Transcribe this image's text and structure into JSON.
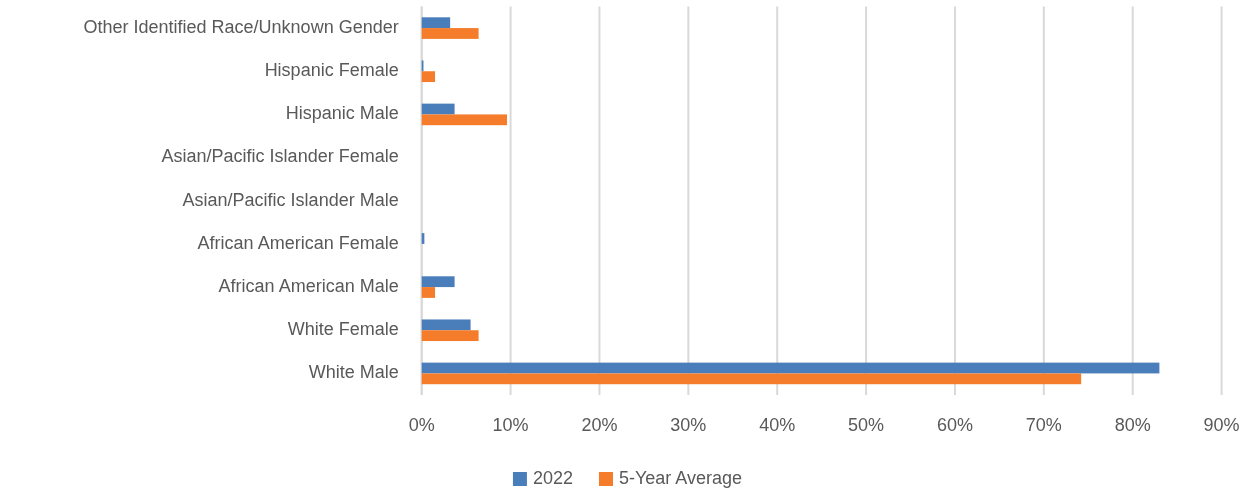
{
  "chart_data": {
    "type": "bar",
    "orientation": "horizontal",
    "categories": [
      "Other Identified Race/Unknown Gender",
      "Hispanic Female",
      "Hispanic Male",
      "Asian/Pacific Islander Female",
      "Asian/Pacific Islander Male",
      "African American Female",
      "African American Male",
      "White Female",
      "White Male"
    ],
    "series": [
      {
        "name": "2022",
        "color": "#4a7ebb",
        "values": [
          3.2,
          0.2,
          3.7,
          0,
          0,
          0.3,
          3.7,
          5.5,
          83.0
        ]
      },
      {
        "name": "5-Year Average",
        "color": "#f47c2a",
        "values": [
          6.4,
          1.5,
          9.6,
          0,
          0,
          0,
          1.5,
          6.4,
          74.2
        ]
      }
    ],
    "xlim": [
      0,
      90
    ],
    "xticks": [
      {
        "value": 0,
        "label": "0%"
      },
      {
        "value": 10,
        "label": "10%"
      },
      {
        "value": 20,
        "label": "20%"
      },
      {
        "value": 30,
        "label": "30%"
      },
      {
        "value": 40,
        "label": "40%"
      },
      {
        "value": 50,
        "label": "50%"
      },
      {
        "value": 60,
        "label": "60%"
      },
      {
        "value": 70,
        "label": "70%"
      },
      {
        "value": 80,
        "label": "80%"
      },
      {
        "value": 90,
        "label": "90%"
      }
    ],
    "grid": "x",
    "legend": "bottom"
  }
}
